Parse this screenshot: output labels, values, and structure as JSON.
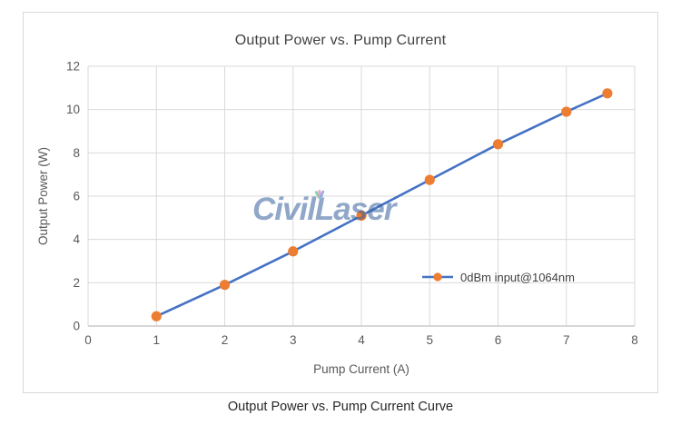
{
  "page": {
    "caption": "Output Power vs. Pump Current Curve"
  },
  "watermark": {
    "text": "CivilLaser"
  },
  "colors": {
    "gridline": "#D9D9D9",
    "axis_line": "#BFBFBF",
    "tick_text": "#595959",
    "title_text": "#404040",
    "watermark_blue": "#37609D"
  },
  "chart_data": {
    "type": "line",
    "title": "Output Power vs. Pump Current",
    "xlabel": "Pump Current (A)",
    "ylabel": "Output Power (W)",
    "xlim": [
      0,
      8
    ],
    "ylim": [
      0,
      12
    ],
    "x_ticks": [
      0,
      1,
      2,
      3,
      4,
      5,
      6,
      7,
      8
    ],
    "y_ticks": [
      0,
      2,
      4,
      6,
      8,
      10,
      12
    ],
    "grid": true,
    "legend_position": "inside-right-lower",
    "series": [
      {
        "name": "0dBm input@1064nm",
        "x": [
          1,
          2,
          3,
          4,
          5,
          6,
          7,
          7.6
        ],
        "y": [
          0.45,
          1.9,
          3.45,
          5.1,
          6.75,
          8.4,
          9.9,
          10.75
        ],
        "line_color": "#4472C4",
        "marker_color": "#ED7D31",
        "marker": "circle"
      }
    ]
  }
}
